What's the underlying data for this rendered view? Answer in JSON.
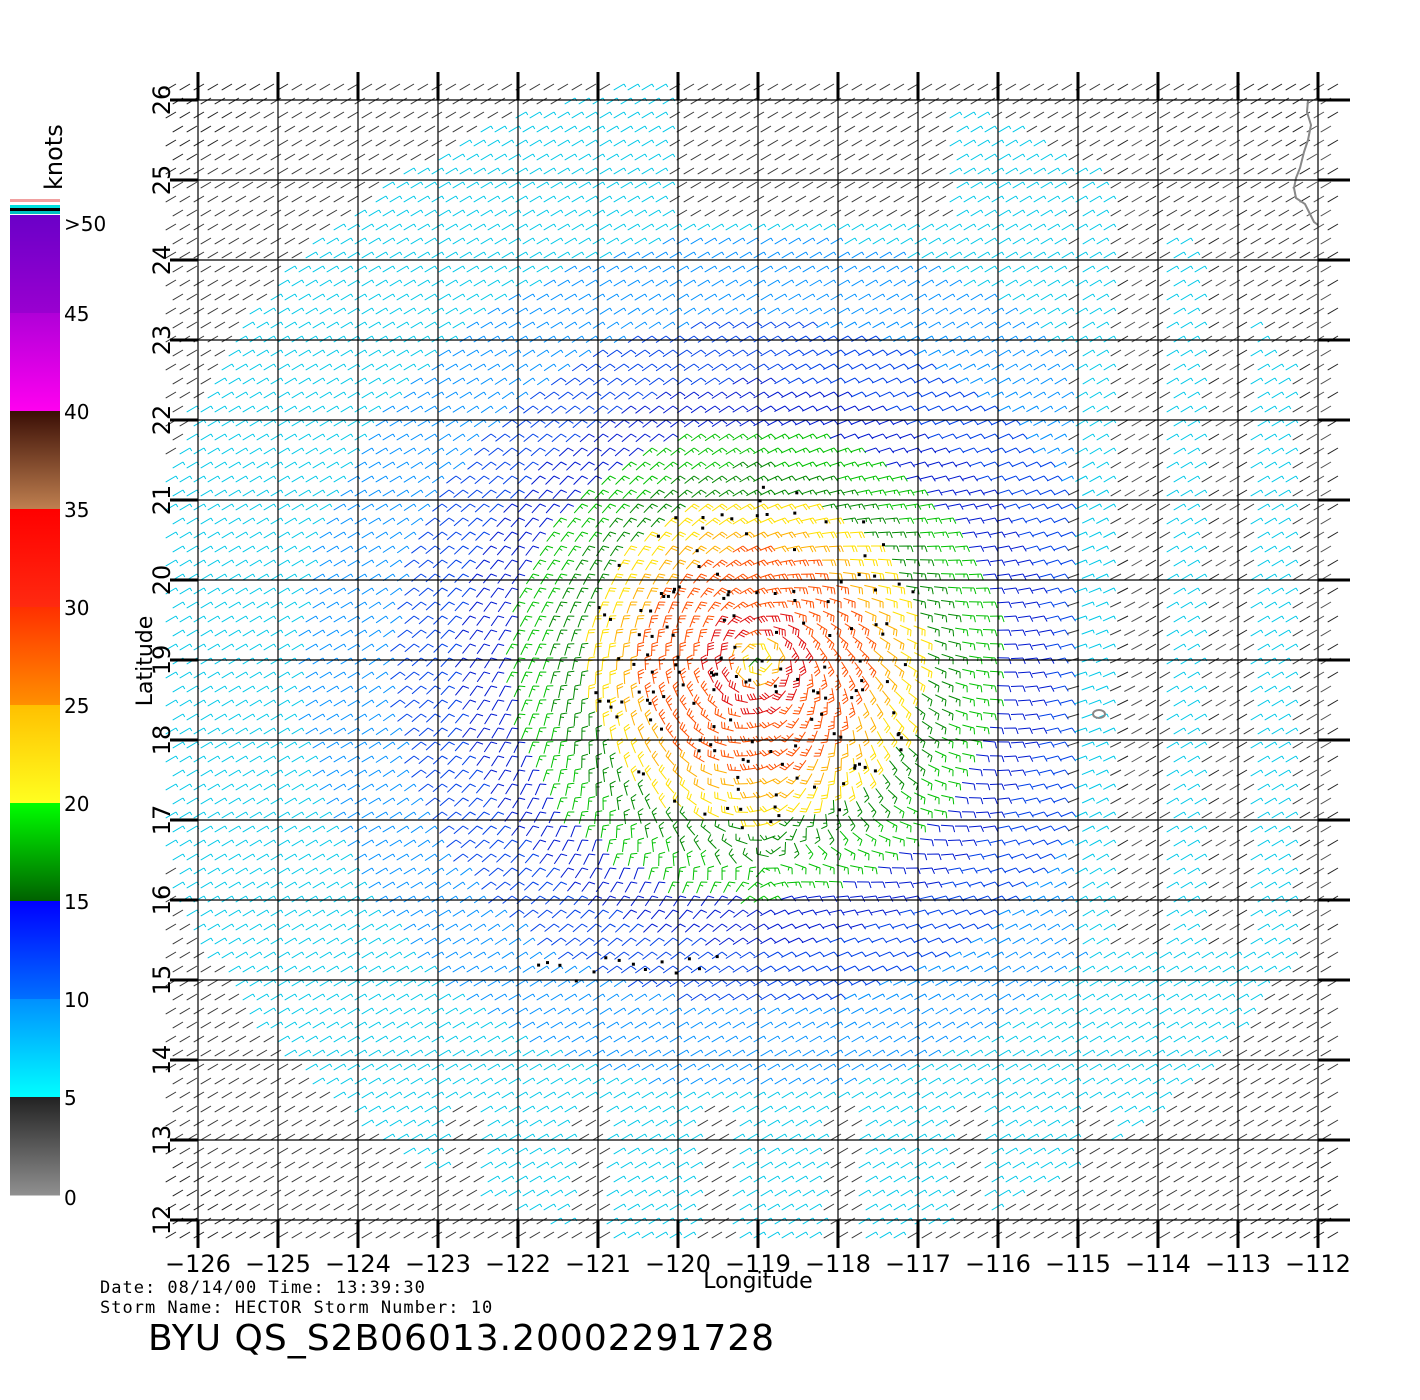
{
  "map": {
    "x_axis_label": "Longitude",
    "y_axis_label": "Latitude",
    "lon_ticks": [
      "−126",
      "−125",
      "−124",
      "−123",
      "−122",
      "−121",
      "−120",
      "−119",
      "−118",
      "−117",
      "−116",
      "−115",
      "−114",
      "−113",
      "−112"
    ],
    "lat_ticks": [
      "12",
      "13",
      "14",
      "15",
      "16",
      "17",
      "18",
      "19",
      "20",
      "21",
      "22",
      "23",
      "24",
      "25",
      "26"
    ],
    "lon_range": [
      -126,
      -112
    ],
    "lat_range": [
      12,
      26
    ],
    "storm_center": {
      "lon": -119.0,
      "lat": 19.0
    },
    "grid": true
  },
  "colorbar": {
    "units": "knots",
    "labels": [
      ">50",
      "45",
      "40",
      "35",
      "30",
      "25",
      "20",
      "15",
      "10",
      "5",
      "0"
    ],
    "segments": [
      {
        "range": [
          45,
          50
        ],
        "top": "#6a00c8",
        "bottom": "#9a00d0"
      },
      {
        "range": [
          40,
          45
        ],
        "top": "#b000d8",
        "bottom": "#ff00f0"
      },
      {
        "range": [
          35,
          40
        ],
        "top": "#3a0e05",
        "bottom": "#c08050"
      },
      {
        "range": [
          30,
          35
        ],
        "top": "#ff0000",
        "bottom": "#ff2a10"
      },
      {
        "range": [
          25,
          30
        ],
        "top": "#ff3000",
        "bottom": "#ff9000"
      },
      {
        "range": [
          20,
          25
        ],
        "top": "#ffc000",
        "bottom": "#ffff20"
      },
      {
        "range": [
          15,
          20
        ],
        "top": "#00ff00",
        "bottom": "#006000"
      },
      {
        "range": [
          10,
          15
        ],
        "top": "#0000ff",
        "bottom": "#0070ff"
      },
      {
        "range": [
          5,
          10
        ],
        "top": "#0090ff",
        "bottom": "#00ffff"
      },
      {
        "range": [
          0,
          5
        ],
        "top": "#222222",
        "bottom": "#909090"
      }
    ],
    "top_stripes": [
      "#f0a0a0",
      "#ffffff",
      "#00e0e0",
      "#000000",
      "#00c0c0"
    ]
  },
  "footer": {
    "line1": "Date: 08/14/00   Time: 13:39:30",
    "line2": "Storm  Name: HECTOR   Storm  Number: 10",
    "title": "BYU  QS_S2B06013.20002291728"
  }
}
